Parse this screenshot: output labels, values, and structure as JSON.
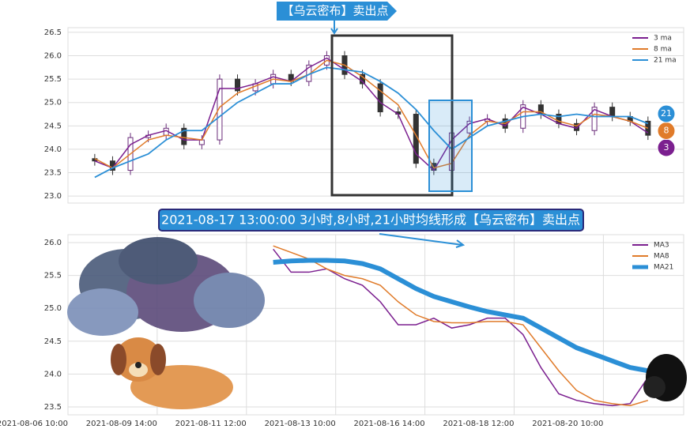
{
  "chart_data": [
    {
      "type": "candlestick",
      "annotation": "【乌云密布】卖出点",
      "x": [
        3,
        5,
        7,
        9,
        11,
        13,
        15,
        17,
        19,
        21,
        23,
        25,
        27,
        29,
        31,
        33,
        35,
        37,
        39,
        41,
        43,
        45,
        47,
        49,
        51,
        53,
        55,
        57,
        59,
        61,
        63,
        65
      ],
      "open": [
        23.8,
        23.75,
        23.55,
        24.25,
        24.3,
        24.45,
        24.1,
        24.2,
        25.5,
        25.25,
        25.4,
        25.6,
        25.45,
        25.8,
        26.0,
        25.6,
        25.4,
        24.8,
        24.75,
        23.7,
        23.55,
        24.35,
        24.6,
        24.65,
        24.45,
        24.95,
        24.75,
        24.55,
        24.4,
        24.9,
        24.7,
        24.6
      ],
      "high": [
        23.9,
        23.85,
        24.35,
        24.4,
        24.55,
        24.55,
        24.3,
        25.6,
        25.6,
        25.5,
        25.7,
        25.7,
        25.9,
        26.1,
        26.1,
        25.7,
        25.5,
        24.9,
        24.85,
        23.8,
        24.45,
        24.7,
        24.75,
        24.75,
        25.05,
        25.05,
        24.85,
        24.65,
        25.0,
        25.0,
        24.8,
        24.7
      ],
      "low": [
        23.65,
        23.45,
        23.45,
        24.15,
        24.2,
        24.0,
        24.0,
        24.1,
        25.15,
        25.15,
        25.3,
        25.35,
        25.35,
        25.7,
        25.5,
        25.3,
        24.7,
        24.65,
        23.6,
        23.45,
        23.45,
        24.25,
        24.5,
        24.35,
        24.35,
        24.65,
        24.45,
        24.3,
        24.3,
        24.6,
        24.5,
        24.2
      ],
      "close": [
        23.75,
        23.55,
        24.25,
        24.3,
        24.45,
        24.1,
        24.2,
        25.5,
        25.25,
        25.4,
        25.6,
        25.45,
        25.8,
        26.0,
        25.6,
        25.4,
        24.8,
        24.75,
        23.7,
        23.55,
        24.35,
        24.6,
        24.65,
        24.45,
        24.95,
        24.75,
        24.55,
        24.4,
        24.9,
        24.7,
        24.6,
        24.3
      ],
      "up_color": "#6a2c7a",
      "down_color": "#333333",
      "series": [
        {
          "name": "3 ma",
          "color": "#7b1f8f",
          "values": [
            23.75,
            23.6,
            24.1,
            24.3,
            24.4,
            24.2,
            24.2,
            25.3,
            25.3,
            25.4,
            25.55,
            25.45,
            25.75,
            25.95,
            25.7,
            25.45,
            25.0,
            24.75,
            23.9,
            23.55,
            24.2,
            24.55,
            24.65,
            24.5,
            24.9,
            24.75,
            24.55,
            24.45,
            24.85,
            24.7,
            24.6,
            24.35
          ]
        },
        {
          "name": "8 ma",
          "color": "#e07b2a",
          "values": [
            23.8,
            23.6,
            23.9,
            24.2,
            24.3,
            24.25,
            24.2,
            24.9,
            25.2,
            25.35,
            25.5,
            25.45,
            25.6,
            25.9,
            25.8,
            25.55,
            25.25,
            24.95,
            24.3,
            23.6,
            23.7,
            24.3,
            24.6,
            24.55,
            24.8,
            24.8,
            24.6,
            24.5,
            24.75,
            24.7,
            24.6,
            24.45
          ]
        },
        {
          "name": "21 ma",
          "color": "#2b8fd6",
          "values": [
            23.4,
            23.6,
            23.75,
            23.9,
            24.2,
            24.4,
            24.4,
            24.7,
            25.0,
            25.2,
            25.4,
            25.4,
            25.6,
            25.75,
            25.7,
            25.65,
            25.45,
            25.2,
            24.85,
            24.4,
            24.0,
            24.25,
            24.5,
            24.6,
            24.7,
            24.75,
            24.7,
            24.75,
            24.7,
            24.7,
            24.7,
            24.55
          ]
        }
      ],
      "end_labels": [
        "3",
        "8",
        "21"
      ],
      "xlim": [
        0,
        69
      ],
      "ylim": [
        22.85,
        26.6
      ],
      "yticks": [
        {
          "value": 23,
          "label": "23.0"
        },
        23.5,
        {
          "value": 24,
          "label": "24.0"
        },
        24.5,
        {
          "value": 25,
          "label": "25.0"
        },
        25.5,
        {
          "value": 26,
          "label": "26.0"
        },
        26.5
      ],
      "grid": true,
      "legend": "upper right"
    },
    {
      "type": "line",
      "annotation": "2021-08-17 13:00:00 3小时,8小时,21小时均线形成【乌云密布】卖出点",
      "x": [
        23,
        25,
        27,
        29,
        31,
        33,
        35,
        37,
        39,
        41,
        43,
        45,
        47,
        49,
        51,
        53,
        55,
        57,
        59,
        61,
        63,
        65
      ],
      "series": [
        {
          "name": "MA3",
          "color": "#7b1f8f",
          "values": [
            25.9,
            25.55,
            25.55,
            25.6,
            25.45,
            25.35,
            25.1,
            24.75,
            24.75,
            24.85,
            24.7,
            24.75,
            24.85,
            24.85,
            24.6,
            24.1,
            23.7,
            23.6,
            23.55,
            23.52,
            23.55,
            23.95
          ]
        },
        {
          "name": "MA8",
          "color": "#e07b2a",
          "values": [
            25.95,
            25.85,
            25.75,
            25.6,
            25.5,
            25.45,
            25.35,
            25.1,
            24.9,
            24.8,
            24.78,
            24.78,
            24.8,
            24.8,
            24.75,
            24.4,
            24.05,
            23.75,
            23.6,
            23.55,
            23.52,
            23.6
          ]
        },
        {
          "name": "MA21",
          "color": "#2b8fd6",
          "values": [
            25.7,
            25.72,
            25.73,
            25.73,
            25.72,
            25.68,
            25.6,
            25.45,
            25.3,
            25.18,
            25.1,
            25.02,
            24.95,
            24.9,
            24.85,
            24.7,
            24.55,
            24.4,
            24.3,
            24.2,
            24.1,
            24.05
          ]
        }
      ],
      "xlim": [
        0,
        69
      ],
      "ylim": [
        23.38,
        26.12
      ],
      "xticks": [
        {
          "value": 0,
          "label": "2021-08-06 10:00"
        },
        {
          "value": 10,
          "label": "2021-08-09 14:00"
        },
        {
          "value": 20,
          "label": "2021-08-11 12:00"
        },
        {
          "value": 30,
          "label": "2021-08-13 10:00"
        },
        {
          "value": 40,
          "label": "2021-08-16 14:00"
        },
        {
          "value": 50,
          "label": "2021-08-18 12:00"
        },
        {
          "value": 60,
          "label": "2021-08-20 10:00"
        }
      ],
      "yticks": [
        23.5,
        {
          "value": 24,
          "label": "24.0"
        },
        24.5,
        {
          "value": 25,
          "label": "25.0"
        },
        25.5,
        {
          "value": 26,
          "label": "26.0"
        }
      ],
      "grid": true,
      "legend": "upper right"
    }
  ]
}
